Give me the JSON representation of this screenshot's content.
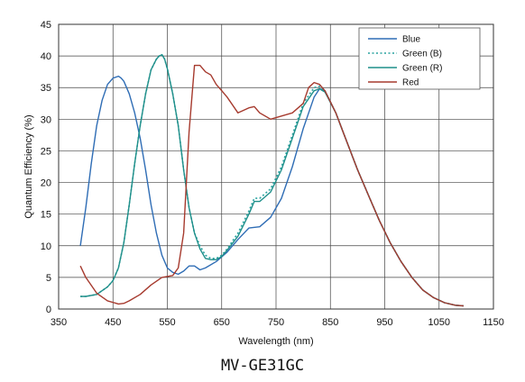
{
  "chart_data": {
    "type": "line",
    "title": "",
    "caption": "MV-GE31GC",
    "xlabel": "Wavelength (nm)",
    "ylabel": "Quantum Efficiency (%)",
    "xlim": [
      350,
      1150
    ],
    "ylim": [
      0,
      45
    ],
    "xticks": [
      350,
      450,
      550,
      650,
      750,
      850,
      950,
      1050,
      1150
    ],
    "yticks": [
      0,
      5,
      10,
      15,
      20,
      25,
      30,
      35,
      40,
      45
    ],
    "grid": true,
    "legend_position": "top-right",
    "series": [
      {
        "name": "Blue",
        "color": "#2f6db5",
        "dash": "solid",
        "x": [
          390,
          400,
          410,
          420,
          430,
          440,
          450,
          460,
          465,
          470,
          480,
          490,
          500,
          510,
          520,
          530,
          540,
          550,
          560,
          570,
          580,
          590,
          600,
          610,
          620,
          640,
          660,
          680,
          700,
          720,
          740,
          760,
          780,
          800,
          820,
          830,
          840,
          860,
          880,
          900,
          920,
          940,
          960,
          980,
          1000,
          1020,
          1040,
          1060,
          1080,
          1095
        ],
        "y": [
          10,
          16,
          23,
          29,
          33,
          35.5,
          36.5,
          36.8,
          36.5,
          36,
          34,
          31,
          27,
          22,
          16.5,
          12,
          8.5,
          6.5,
          5.8,
          5.5,
          6,
          6.8,
          6.8,
          6.2,
          6.5,
          7.5,
          9,
          11,
          12.8,
          13,
          14.5,
          17.5,
          22.5,
          28.5,
          33.5,
          34.8,
          34.5,
          31,
          26.5,
          22,
          18,
          14,
          10.5,
          7.5,
          5,
          3,
          1.8,
          1,
          0.6,
          0.5
        ]
      },
      {
        "name": "Green (B)",
        "color": "#2aa3a0",
        "dash": "dotted",
        "x": [
          390,
          400,
          420,
          440,
          450,
          460,
          470,
          480,
          490,
          500,
          510,
          520,
          530,
          535,
          540,
          545,
          550,
          560,
          570,
          580,
          590,
          600,
          610,
          620,
          630,
          640,
          650,
          660,
          680,
          700,
          710,
          720,
          740,
          760,
          780,
          800,
          820,
          830,
          840,
          860,
          880,
          900,
          920,
          940,
          960,
          980,
          1000,
          1020,
          1040,
          1060,
          1080,
          1095
        ],
        "y": [
          2,
          2,
          2.3,
          3.5,
          4.5,
          6.5,
          10.5,
          16.5,
          23,
          29,
          34,
          37.8,
          39.5,
          40,
          40.2,
          39.5,
          38,
          34,
          29,
          22,
          16,
          12,
          10,
          8.5,
          8,
          8,
          8.5,
          9.5,
          12,
          15.5,
          17.5,
          17.5,
          19,
          22.5,
          27.5,
          32.5,
          35,
          35.2,
          34.5,
          31,
          26.5,
          22,
          18,
          14,
          10.5,
          7.5,
          5,
          3,
          1.8,
          1,
          0.6,
          0.5
        ]
      },
      {
        "name": "Green (R)",
        "color": "#1f8f8a",
        "dash": "solid",
        "x": [
          390,
          400,
          420,
          440,
          450,
          460,
          470,
          480,
          490,
          500,
          510,
          520,
          530,
          535,
          540,
          545,
          550,
          560,
          570,
          580,
          590,
          600,
          610,
          620,
          630,
          640,
          650,
          660,
          680,
          700,
          710,
          720,
          740,
          760,
          780,
          800,
          820,
          830,
          840,
          860,
          880,
          900,
          920,
          940,
          960,
          980,
          1000,
          1020,
          1040,
          1060,
          1080,
          1095
        ],
        "y": [
          2,
          2,
          2.3,
          3.5,
          4.5,
          6.5,
          10.5,
          16.5,
          23,
          29,
          34,
          37.8,
          39.5,
          40,
          40.2,
          39.5,
          38,
          34,
          29,
          22,
          16,
          12,
          9.5,
          8,
          7.8,
          7.8,
          8.3,
          9.3,
          11.5,
          15,
          17,
          17,
          18.5,
          22,
          27,
          32,
          34.5,
          34.8,
          34.3,
          31,
          26.5,
          22,
          18,
          14,
          10.5,
          7.5,
          5,
          3,
          1.8,
          1,
          0.6,
          0.5
        ]
      },
      {
        "name": "Red",
        "color": "#a63a2e",
        "dash": "solid",
        "x": [
          390,
          400,
          420,
          440,
          460,
          470,
          480,
          500,
          520,
          540,
          560,
          570,
          580,
          590,
          600,
          610,
          620,
          630,
          640,
          650,
          660,
          680,
          700,
          710,
          720,
          740,
          760,
          780,
          800,
          810,
          820,
          830,
          840,
          860,
          880,
          900,
          920,
          940,
          960,
          980,
          1000,
          1020,
          1040,
          1060,
          1080,
          1095
        ],
        "y": [
          6.8,
          5,
          2.5,
          1.3,
          0.8,
          0.9,
          1.3,
          2.3,
          3.8,
          5,
          5.3,
          6.5,
          12,
          28,
          38.5,
          38.5,
          37.5,
          37,
          35.5,
          34.5,
          33.5,
          31,
          31.8,
          32,
          31,
          30,
          30.5,
          31,
          32.5,
          35,
          35.8,
          35.5,
          34.5,
          31,
          26.5,
          22,
          18,
          14,
          10.5,
          7.5,
          5,
          3,
          1.8,
          1,
          0.6,
          0.5
        ]
      }
    ]
  }
}
